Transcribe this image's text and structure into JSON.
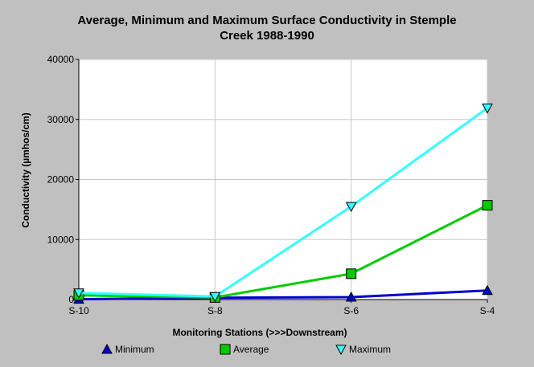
{
  "chart_data": {
    "type": "line",
    "title_line1": "Average, Minimum and Maximum Surface Conductivity in Stemple",
    "title_line2": "Creek 1988-1990",
    "xlabel": "Monitoring Stations (>>>Downstream)",
    "ylabel": "Conductivity (µmhos/cm)",
    "categories": [
      "S-10",
      "S-8",
      "S-6",
      "S-4"
    ],
    "ylim": [
      0,
      40000
    ],
    "yticks": [
      "0",
      "10000",
      "20000",
      "30000",
      "40000"
    ],
    "ytick_values": [
      0,
      10000,
      20000,
      30000,
      40000
    ],
    "grid": true,
    "legend_position": "bottom",
    "series": [
      {
        "name": "Minimum",
        "values": [
          50,
          300,
          400,
          1500
        ],
        "color": "#0000cc",
        "marker": "triangle-up"
      },
      {
        "name": "Average",
        "values": [
          700,
          350,
          4300,
          15700
        ],
        "color": "#00cc00",
        "marker": "square"
      },
      {
        "name": "Maximum",
        "values": [
          1100,
          500,
          15500,
          31900
        ],
        "color": "#33ffff",
        "marker": "triangle-down"
      }
    ]
  }
}
